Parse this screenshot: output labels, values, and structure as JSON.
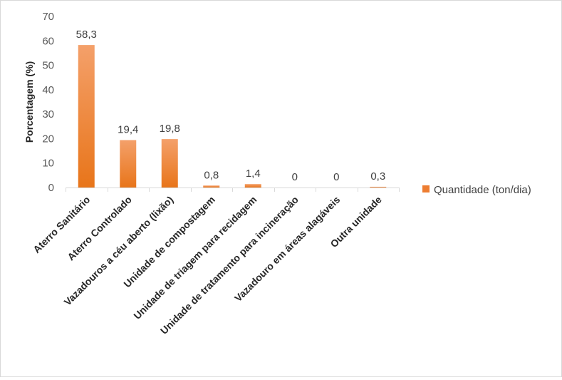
{
  "chart_data": {
    "type": "bar",
    "title": "",
    "xlabel": "",
    "ylabel": "Porcentagem (%)",
    "ylim": [
      0,
      70
    ],
    "yticks": [
      0,
      10,
      20,
      30,
      40,
      50,
      60,
      70
    ],
    "categories": [
      "Aterro Sanitário",
      "Aterro Controlado",
      "Vazadouros a céu aberto (lixão)",
      "Unidade de compostagem",
      "Unidade de triagem para recidagem",
      "Unidade de tratamento para incineração",
      "Vazadouro em áreas alagáveis",
      "Outra unidade"
    ],
    "series": [
      {
        "name": "Quantidade (ton/dia)",
        "values": [
          58.3,
          19.4,
          19.8,
          0.8,
          1.4,
          0,
          0,
          0.3
        ],
        "labels": [
          "58,3",
          "19,4",
          "19,8",
          "0,8",
          "1,4",
          "0",
          "0",
          "0,3"
        ]
      }
    ],
    "grid": false,
    "legend_position": "right",
    "colors": {
      "bar_top": "#f4a06a",
      "bar_bottom": "#e8751a",
      "legend": "#ed7d31",
      "axis": "#d9d9d9"
    }
  }
}
